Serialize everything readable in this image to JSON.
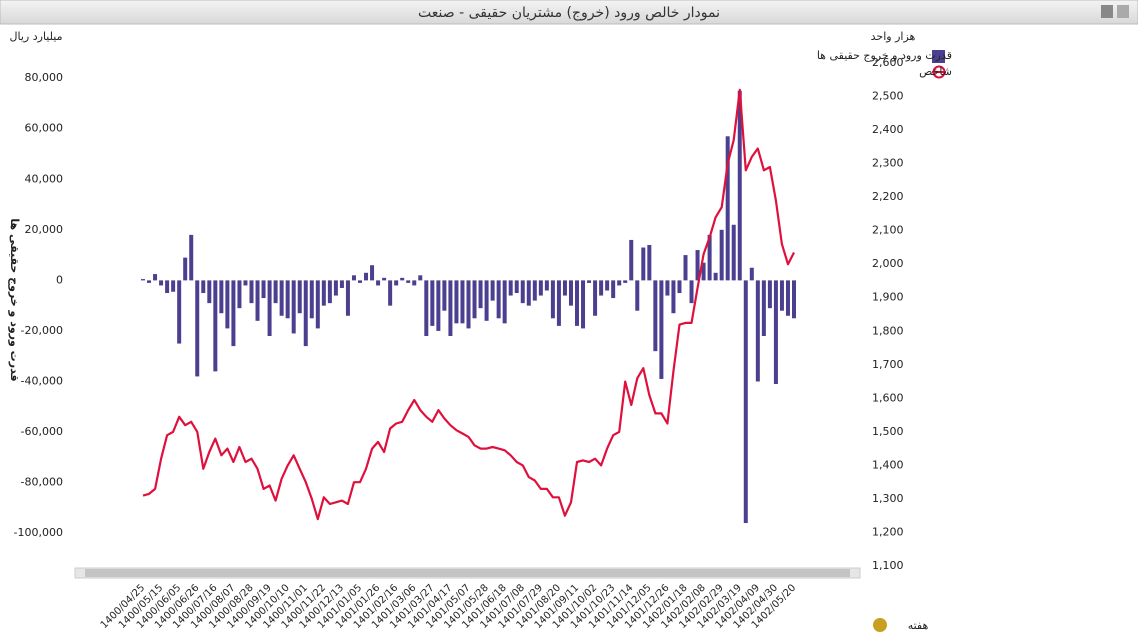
{
  "chart_data": {
    "type": "combo",
    "title": "نمودار خالص ورود (خروج) مشتریان حقیقی - صنعت",
    "y_label": "قدرت ورود و خروج حقیقی ها",
    "y_unit": "میلیارد ریال",
    "y2_unit": "هزار واحد",
    "x_label": "هفته",
    "categories": [
      "1400/04/25",
      null,
      null,
      "1400/05/15",
      null,
      null,
      "1400/06/05",
      null,
      null,
      "1400/06/26",
      null,
      null,
      "1400/07/16",
      null,
      null,
      "1400/08/07",
      null,
      null,
      "1400/08/28",
      null,
      null,
      "1400/09/19",
      null,
      null,
      "1400/10/10",
      null,
      null,
      "1400/11/01",
      null,
      null,
      "1400/11/22",
      null,
      null,
      "1400/12/13",
      null,
      null,
      "1401/01/05",
      null,
      null,
      "1401/01/26",
      null,
      null,
      "1401/02/16",
      null,
      null,
      "1401/03/06",
      null,
      null,
      "1401/03/27",
      null,
      null,
      "1401/04/17",
      null,
      null,
      "1401/05/07",
      null,
      null,
      "1401/05/28",
      null,
      null,
      "1401/06/18",
      null,
      null,
      "1401/07/08",
      null,
      null,
      "1401/07/29",
      null,
      null,
      "1401/08/20",
      null,
      null,
      "1401/09/11",
      null,
      null,
      "1401/10/02",
      null,
      null,
      "1401/10/23",
      null,
      null,
      "1401/11/14",
      null,
      null,
      "1401/12/05",
      null,
      null,
      "1401/12/26",
      null,
      null,
      "1402/01/18",
      null,
      null,
      "1402/02/08",
      null,
      null,
      "1402/02/29",
      null,
      null,
      "1402/03/19",
      null,
      null,
      "1402/04/09",
      null,
      null,
      "1402/04/30",
      null,
      null,
      "1402/05/20"
    ],
    "series": [
      {
        "name": "قدرت ورود و خروج حقیقی ها",
        "type": "bar",
        "color": "#4b3f8f",
        "values": [
          500,
          -1000,
          2500,
          -2000,
          -5000,
          -4500,
          -25000,
          9000,
          18000,
          -38000,
          -5000,
          -9000,
          -36000,
          -13000,
          -19000,
          -26000,
          -11000,
          -2000,
          -9000,
          -16000,
          -7000,
          -22000,
          -9000,
          -14000,
          -15000,
          -21000,
          -13000,
          -26000,
          -15000,
          -19000,
          -10000,
          -9000,
          -6000,
          -3000,
          -14000,
          2000,
          -1000,
          3000,
          6000,
          -2000,
          1000,
          -10000,
          -2000,
          1000,
          -1000,
          -2000,
          2000,
          -22000,
          -18000,
          -20000,
          -12000,
          -22000,
          -17000,
          -17000,
          -19000,
          -15000,
          -11000,
          -16000,
          -8000,
          -15000,
          -17000,
          -6000,
          -5000,
          -9000,
          -10000,
          -8000,
          -6000,
          -4000,
          -15000,
          -18000,
          -6000,
          -10000,
          -18000,
          -19000,
          -1000,
          -14000,
          -6000,
          -4000,
          -7000,
          -2000,
          -1000,
          16000,
          -12000,
          13000,
          14000,
          -28000,
          -39000,
          -6000,
          -13000,
          -5000,
          10000,
          -9000,
          12000,
          7000,
          18000,
          3000,
          20000,
          57000,
          22000,
          75000,
          -96000,
          5000,
          -40000,
          -22000,
          -11000,
          -41000,
          -12000,
          -14000,
          -15000
        ]
      },
      {
        "name": "شاخص",
        "type": "line",
        "axis": "y2",
        "color": "#e0103c",
        "values": [
          1310,
          1315,
          1330,
          1420,
          1490,
          1500,
          1545,
          1520,
          1530,
          1500,
          1390,
          1440,
          1480,
          1430,
          1450,
          1410,
          1455,
          1410,
          1420,
          1390,
          1330,
          1340,
          1295,
          1360,
          1400,
          1430,
          1390,
          1350,
          1300,
          1240,
          1305,
          1285,
          1290,
          1295,
          1285,
          1350,
          1350,
          1390,
          1450,
          1470,
          1440,
          1510,
          1525,
          1530,
          1565,
          1595,
          1565,
          1545,
          1530,
          1565,
          1540,
          1520,
          1505,
          1495,
          1485,
          1460,
          1450,
          1450,
          1455,
          1450,
          1445,
          1430,
          1410,
          1400,
          1365,
          1355,
          1330,
          1330,
          1305,
          1305,
          1250,
          1290,
          1410,
          1415,
          1410,
          1420,
          1400,
          1450,
          1490,
          1500,
          1650,
          1580,
          1660,
          1690,
          1610,
          1555,
          1555,
          1525,
          1680,
          1820,
          1825,
          1825,
          1930,
          2030,
          2080,
          2140,
          2170,
          2300,
          2370,
          2520,
          2280,
          2320,
          2345,
          2280,
          2290,
          2190,
          2060,
          2000,
          2035
        ]
      }
    ],
    "ylim": [
      -113000,
      86000
    ],
    "yticks": [
      {
        "value": -100000,
        "label": "-100,000"
      },
      {
        "value": -80000,
        "label": "-80,000"
      },
      {
        "value": -60000,
        "label": "-60,000"
      },
      {
        "value": -40000,
        "label": "-40,000"
      },
      {
        "value": -20000,
        "label": "-20,000"
      },
      0,
      {
        "value": 20000,
        "label": "20,000"
      },
      {
        "value": 40000,
        "label": "40,000"
      },
      {
        "value": 60000,
        "label": "60,000"
      },
      {
        "value": 80000,
        "label": "80,000"
      }
    ],
    "y2lim": [
      1100,
      2600
    ],
    "y2ticks": [
      {
        "value": 1100,
        "label": "1,100"
      },
      {
        "value": 1200,
        "label": "1,200"
      },
      {
        "value": 1300,
        "label": "1,300"
      },
      {
        "value": 1400,
        "label": "1,400"
      },
      {
        "value": 1500,
        "label": "1,500"
      },
      {
        "value": 1600,
        "label": "1,600"
      },
      {
        "value": 1700,
        "label": "1,700"
      },
      {
        "value": 1800,
        "label": "1,800"
      },
      {
        "value": 1900,
        "label": "1,900"
      },
      {
        "value": 2000,
        "label": "2,000"
      },
      {
        "value": 2100,
        "label": "2,100"
      },
      {
        "value": 2200,
        "label": "2,200"
      },
      {
        "value": 2300,
        "label": "2,300"
      },
      {
        "value": 2400,
        "label": "2,400"
      },
      {
        "value": 2500,
        "label": "2,500"
      },
      {
        "value": 2600,
        "label": "2,600"
      }
    ],
    "grid": false
  }
}
